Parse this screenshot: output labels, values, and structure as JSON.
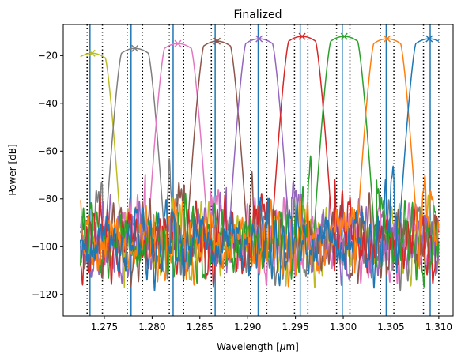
{
  "chart_data": {
    "type": "line",
    "title": "Finalized",
    "xlabel": "Wavelength [$\\mu$m]",
    "ylabel": "Power [dB]",
    "xlim": [
      1.2707,
      1.3115
    ],
    "ylim": [
      -129,
      -7
    ],
    "xticks": [
      1.275,
      1.28,
      1.285,
      1.29,
      1.295,
      1.3,
      1.305,
      1.31
    ],
    "xtick_labels": [
      "1.275",
      "1.280",
      "1.285",
      "1.290",
      "1.295",
      "1.300",
      "1.305",
      "1.310"
    ],
    "yticks": [
      -120,
      -100,
      -80,
      -60,
      -40,
      -20
    ],
    "ytick_labels": [
      "−120",
      "−100",
      "−80",
      "−60",
      "−40",
      "−20"
    ],
    "grid": false,
    "legend": "none",
    "series": [
      {
        "color": "#bcbd22",
        "center": 1.2737,
        "peak_db": -19,
        "x_start": 1.2725
      },
      {
        "color": "#7f7f7f",
        "center": 1.2782,
        "peak_db": -17
      },
      {
        "color": "#e377c2",
        "center": 1.2827,
        "peak_db": -15
      },
      {
        "color": "#8c564b",
        "center": 1.2868,
        "peak_db": -14
      },
      {
        "color": "#9467bd",
        "center": 1.2912,
        "peak_db": -13
      },
      {
        "color": "#d62728",
        "center": 1.2957,
        "peak_db": -12
      },
      {
        "color": "#2ca02c",
        "center": 1.3001,
        "peak_db": -12
      },
      {
        "color": "#ff7f0e",
        "center": 1.3046,
        "peak_db": -13
      },
      {
        "color": "#1f77b4",
        "center": 1.309,
        "peak_db": -13,
        "x_end": 1.31
      }
    ],
    "solid_vlines": [
      1.2735,
      1.2778,
      1.2822,
      1.2866,
      1.2911,
      1.2955,
      1.2999,
      1.3045,
      1.3091
    ],
    "dotted_vlines": [
      1.2732,
      1.2748,
      1.2774,
      1.279,
      1.2818,
      1.2833,
      1.2862,
      1.2876,
      1.2903,
      1.292,
      1.2949,
      1.2963,
      1.2993,
      1.3007,
      1.3039,
      1.3053,
      1.3084,
      1.31
    ],
    "vline_color": "#1f77b4",
    "peak_marker": "x"
  }
}
